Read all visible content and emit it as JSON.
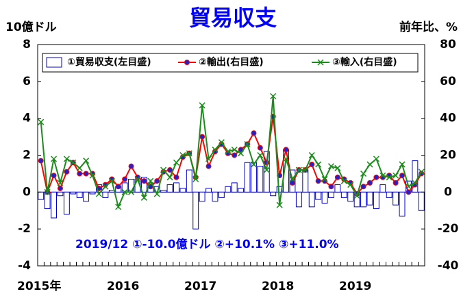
{
  "chart_data": {
    "type": "bar-line",
    "title": "貿易収支",
    "ylabel": "10億ドル",
    "y2label": "前年比、%",
    "annotation": "2019/12  ①-10.0億ドル  ②+10.1%  ③+11.0%",
    "categories": [
      "2015年",
      null,
      null,
      null,
      null,
      null,
      null,
      null,
      null,
      null,
      null,
      null,
      "2016",
      null,
      null,
      null,
      null,
      null,
      null,
      null,
      null,
      null,
      null,
      null,
      "2017",
      null,
      null,
      null,
      null,
      null,
      null,
      null,
      null,
      null,
      null,
      null,
      "2018",
      null,
      null,
      null,
      null,
      null,
      null,
      null,
      null,
      null,
      null,
      null,
      "2019",
      null,
      null,
      null,
      null,
      null,
      null,
      null,
      null,
      null,
      null,
      null
    ],
    "ylim": [
      -4,
      8
    ],
    "yticks": [
      -4,
      -2,
      0,
      2,
      4,
      6,
      8
    ],
    "y2lim": [
      -40,
      80
    ],
    "y2ticks": [
      -40,
      -20,
      0,
      20,
      40,
      60,
      80
    ],
    "legend": "top",
    "series": [
      {
        "name": "①貿易収支(左目盛)",
        "type": "bar",
        "color": "#0000cc",
        "values": [
          -0.4,
          -0.9,
          -1.4,
          -0.2,
          -1.2,
          -0.1,
          -0.3,
          -0.5,
          -0.1,
          0.4,
          -0.3,
          0.1,
          0.3,
          0.5,
          0.7,
          0.7,
          0.8,
          0.5,
          0.3,
          0.1,
          0.4,
          0.5,
          0.2,
          1.2,
          -2.0,
          -0.5,
          0.2,
          -0.5,
          -0.3,
          0.3,
          0.5,
          0.2,
          1.6,
          1.6,
          1.4,
          2.2,
          -0.2,
          0.3,
          2.3,
          1.2,
          -0.8,
          1.2,
          -0.8,
          -0.4,
          -0.6,
          -0.3,
          0.4,
          -0.3,
          -0.5,
          -0.8,
          -0.8,
          -0.7,
          -0.9,
          0.4,
          -0.3,
          -0.7,
          -1.3,
          0.6,
          1.7,
          -1.0
        ]
      },
      {
        "name": "②輸出(右目盛)",
        "type": "line",
        "axis": "y2",
        "color": "#ff0000",
        "marker_color": "#2222cc",
        "values": [
          17,
          0,
          9,
          2,
          11,
          16,
          10,
          10,
          10,
          2,
          4,
          7,
          3,
          7,
          14,
          8,
          6,
          3,
          6,
          11,
          12,
          8,
          19,
          21,
          8,
          30,
          14,
          22,
          26,
          21,
          20,
          23,
          26,
          32,
          24,
          16,
          41,
          9,
          23,
          5,
          12,
          12,
          15,
          6,
          6,
          3,
          8,
          7,
          5,
          -1,
          3,
          5,
          8,
          8,
          9,
          5,
          9,
          0,
          4,
          10.1
        ]
      },
      {
        "name": "③輸入(右目盛)",
        "type": "line",
        "axis": "y2",
        "color": "#1a8c1a",
        "marker_color": "#1a8c1a",
        "values": [
          38,
          0,
          18,
          5,
          18,
          16,
          13,
          17,
          9,
          -1,
          3,
          6,
          -8,
          0,
          0,
          7,
          -3,
          6,
          -1,
          12,
          8,
          16,
          20,
          21,
          7,
          47,
          18,
          23,
          27,
          22,
          23,
          21,
          26,
          15,
          20,
          12,
          52,
          -7,
          18,
          7,
          12,
          12,
          20,
          15,
          7,
          14,
          13,
          6,
          4,
          -2,
          10,
          15,
          18,
          9,
          8,
          9,
          15,
          3,
          5,
          11
        ]
      }
    ]
  }
}
